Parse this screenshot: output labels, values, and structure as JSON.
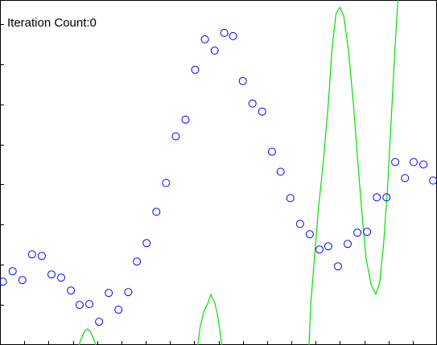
{
  "header": {
    "iteration_label": "Iteration Count:0"
  },
  "colors": {
    "points": "#0000ff",
    "fit_curve": "#00e000",
    "axes": "#000000",
    "background": "#ffffff"
  },
  "chart_data": {
    "type": "scatter",
    "title": "",
    "xlabel": "",
    "ylabel": "",
    "xlim": [
      0,
      45
    ],
    "ylim": [
      0,
      43
    ],
    "grid": false,
    "series": [
      {
        "kind": "points",
        "marker": "circle-open",
        "points": [
          [
            0.3,
            7.9
          ],
          [
            1.3,
            9.2
          ],
          [
            2.3,
            8.1
          ],
          [
            3.3,
            11.3
          ],
          [
            4.3,
            11.1
          ],
          [
            5.3,
            8.8
          ],
          [
            6.3,
            8.4
          ],
          [
            7.3,
            6.8
          ],
          [
            8.2,
            5.0
          ],
          [
            9.2,
            5.1
          ],
          [
            10.2,
            2.9
          ],
          [
            11.2,
            6.5
          ],
          [
            12.2,
            4.4
          ],
          [
            13.2,
            6.6
          ],
          [
            14.1,
            10.4
          ],
          [
            15.1,
            12.7
          ],
          [
            16.1,
            16.6
          ],
          [
            17.1,
            20.2
          ],
          [
            18.1,
            26.0
          ],
          [
            19.1,
            28.1
          ],
          [
            20.1,
            34.3
          ],
          [
            21.1,
            38.1
          ],
          [
            22.1,
            36.7
          ],
          [
            23.1,
            38.9
          ],
          [
            24.0,
            38.5
          ],
          [
            25.0,
            32.9
          ],
          [
            26.0,
            30.1
          ],
          [
            27.0,
            29.1
          ],
          [
            28.0,
            24.1
          ],
          [
            28.9,
            21.6
          ],
          [
            29.9,
            18.3
          ],
          [
            30.9,
            15.1
          ],
          [
            31.9,
            13.8
          ],
          [
            32.9,
            11.9
          ],
          [
            33.8,
            12.3
          ],
          [
            34.8,
            9.8
          ],
          [
            35.8,
            12.6
          ],
          [
            36.8,
            14.0
          ],
          [
            37.8,
            14.1
          ],
          [
            38.8,
            18.4
          ],
          [
            39.8,
            18.4
          ],
          [
            40.7,
            22.8
          ],
          [
            41.7,
            20.8
          ],
          [
            42.6,
            22.8
          ],
          [
            43.6,
            22.5
          ],
          [
            44.6,
            20.5
          ]
        ]
      },
      {
        "kind": "line",
        "points": [
          [
            8.0,
            -0.6
          ],
          [
            8.3,
            0.6
          ],
          [
            8.7,
            1.7
          ],
          [
            9.0,
            2.0
          ],
          [
            9.3,
            1.7
          ],
          [
            9.7,
            0.6
          ],
          [
            10.0,
            -0.6
          ],
          [
            20.3,
            -0.6
          ],
          [
            20.6,
            2.2
          ],
          [
            21.0,
            4.2
          ],
          [
            21.4,
            5.2
          ],
          [
            21.7,
            6.3
          ],
          [
            22.1,
            5.3
          ],
          [
            22.4,
            3.8
          ],
          [
            22.7,
            1.3
          ],
          [
            22.9,
            -0.6
          ],
          [
            31.8,
            -0.6
          ],
          [
            32.0,
            5.0
          ],
          [
            32.4,
            11.2
          ],
          [
            32.8,
            17.1
          ],
          [
            33.3,
            22.9
          ],
          [
            33.8,
            30.0
          ],
          [
            34.2,
            37.0
          ],
          [
            34.6,
            41.3
          ],
          [
            35.0,
            42.1
          ],
          [
            35.4,
            41.0
          ],
          [
            35.9,
            36.5
          ],
          [
            36.4,
            30.0
          ],
          [
            36.9,
            22.0
          ],
          [
            37.3,
            16.0
          ],
          [
            37.7,
            10.8
          ],
          [
            38.2,
            7.6
          ],
          [
            38.7,
            6.3
          ],
          [
            39.1,
            7.8
          ],
          [
            39.5,
            12.5
          ],
          [
            39.9,
            19.5
          ],
          [
            40.3,
            28.5
          ],
          [
            40.7,
            37.5
          ],
          [
            41.0,
            43.5
          ]
        ]
      }
    ]
  }
}
